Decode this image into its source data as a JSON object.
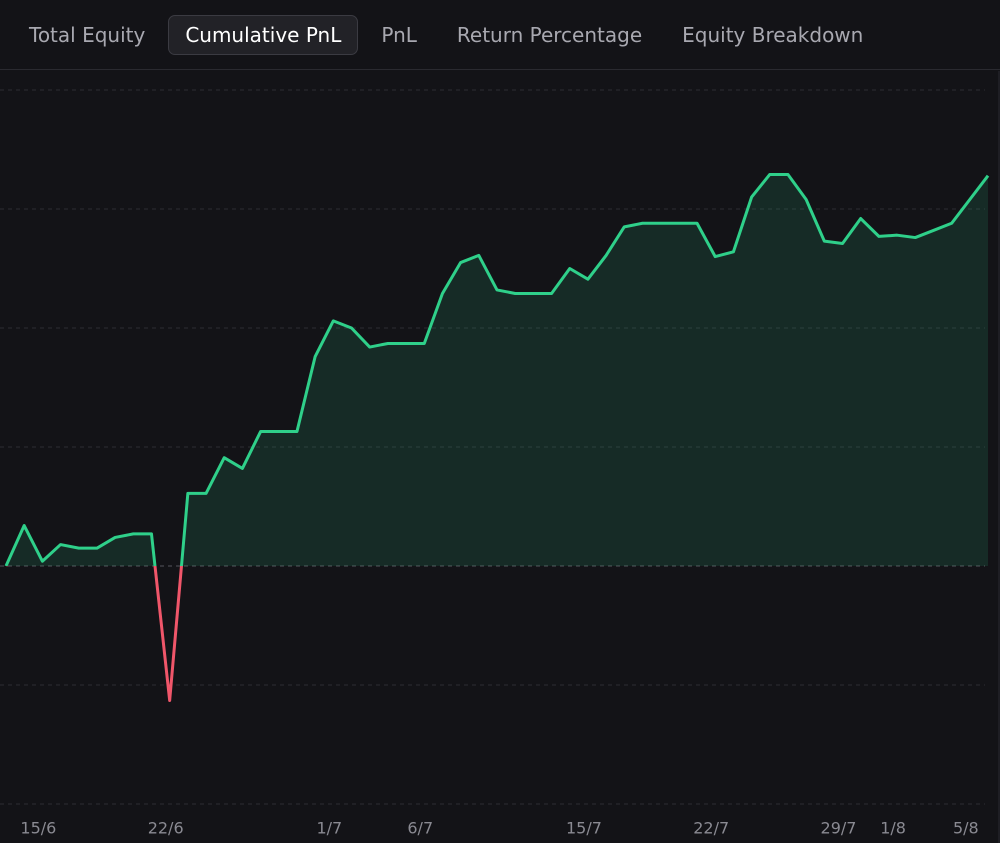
{
  "tabs": [
    "Total Equity",
    "Cumulative PnL",
    "PnL",
    "Return Percentage",
    "Equity Breakdown"
  ],
  "active_tab": 1,
  "chart_data": {
    "type": "line",
    "fill": true,
    "color": "#2fd08a",
    "negative_color": "#f0566a",
    "categories": [
      null,
      null,
      "15/6",
      null,
      null,
      null,
      null,
      null,
      null,
      "22/6",
      null,
      null,
      null,
      null,
      null,
      null,
      null,
      null,
      "1/7",
      null,
      null,
      null,
      null,
      "6/7",
      null,
      null,
      null,
      null,
      null,
      null,
      null,
      null,
      "15/7",
      null,
      null,
      null,
      null,
      null,
      null,
      "22/7",
      null,
      null,
      null,
      null,
      null,
      null,
      "29/7",
      null,
      null,
      "1/8",
      null,
      null,
      null,
      "5/8",
      null
    ],
    "values": [
      0,
      0.34,
      0.04,
      0.18,
      0.15,
      0.15,
      0.24,
      0.27,
      0.27,
      -1.13,
      0.61,
      0.61,
      0.91,
      0.82,
      1.13,
      1.13,
      1.13,
      1.76,
      2.06,
      2.0,
      1.84,
      1.87,
      1.87,
      1.87,
      2.29,
      2.55,
      2.61,
      2.32,
      2.29,
      2.29,
      2.29,
      2.5,
      2.41,
      2.61,
      2.85,
      2.88,
      2.88,
      2.88,
      2.88,
      2.6,
      2.64,
      3.1,
      3.29,
      3.29,
      3.08,
      2.73,
      2.71,
      2.92,
      2.77,
      2.78,
      2.76,
      2.82,
      2.88,
      3.08,
      3.28
    ],
    "ylim": [
      -2,
      4
    ],
    "yticks": [
      -2,
      -1,
      0,
      1,
      2,
      3,
      4
    ],
    "grid": true
  }
}
